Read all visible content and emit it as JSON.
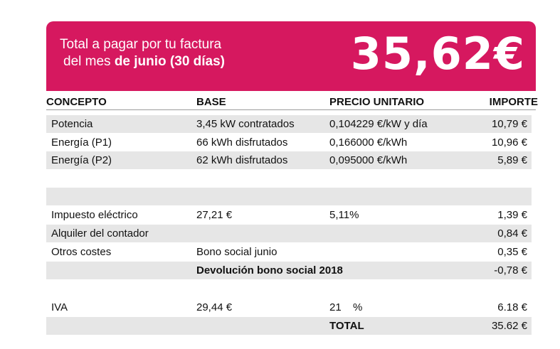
{
  "banner": {
    "line1": "Total a pagar por tu factura",
    "line2_prefix": "del mes ",
    "line2_bold": "de junio (30 días)",
    "amount": "35,62€",
    "color": "#d6185f"
  },
  "headers": {
    "concepto": "CONCEPTO",
    "base": "BASE",
    "precio": "PRECIO UNITARIO",
    "importe": "IMPORTE"
  },
  "rows": {
    "potencia": {
      "concepto": "Potencia",
      "base": "3,45 kW contratados",
      "precio": "0,104229 €/kW y día",
      "importe": "10,79 €"
    },
    "p1": {
      "concepto": "Energía (P1)",
      "base": "66 kWh disfrutados",
      "precio": "0,166000 €/kWh",
      "importe": "10,96 €"
    },
    "p2": {
      "concepto": "Energía (P2)",
      "base": "62 kWh disfrutados",
      "precio": "0,095000 €/kWh",
      "importe": "5,89 €"
    },
    "impuesto": {
      "concepto": "Impuesto eléctrico",
      "base": "27,21 €",
      "precio": "5,11%",
      "importe": "1,39 €"
    },
    "alquiler": {
      "concepto": "Alquiler del contador",
      "importe": "0,84 €"
    },
    "otros": {
      "concepto": "Otros costes",
      "base": "Bono social junio",
      "importe": "0,35 €"
    },
    "devolucion": {
      "base": "Devolución bono social 2018",
      "importe": "-0,78 €"
    },
    "iva": {
      "concepto": "IVA",
      "base": "29,44 €",
      "precio": "21",
      "pct": "%",
      "importe": "6.18 €"
    },
    "total": {
      "label": "TOTAL",
      "importe": "35.62 €"
    }
  }
}
